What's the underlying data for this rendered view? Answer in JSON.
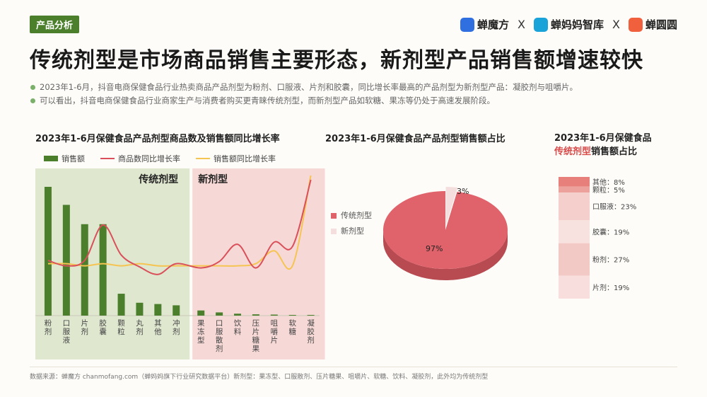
{
  "header": {
    "tag": "产品分析",
    "logos": [
      {
        "name": "蝉魔方",
        "color": "#2f6fe0"
      },
      {
        "name": "蝉妈妈智库",
        "color": "#1aa3d9"
      },
      {
        "name": "蝉圆圆",
        "color": "#f0603c"
      }
    ],
    "separator": "X"
  },
  "title": "传统剂型是市场商品销售主要形态，新剂型产品销售额增速较快",
  "bullets": [
    "2023年1-6月，抖音电商保健食品行业热卖商品产品剂型为粉剂、口服液、片剂和胶囊，同比增长率最高的产品剂型为新剂型产品：凝胶剂与咀嚼片。",
    "可以看出，抖音电商保健食品行业商家生产与消费者购买更青睐传统剂型，而新剂型产品如软糖、果冻等仍处于高速发展阶段。"
  ],
  "footer": "数据来源：蝉魔方 chanmofang.com（蝉妈妈旗下行业研究数据平台）新剂型：果冻型、口服散剂、压片糖果、咀嚼片、软糖、饮料、凝胶剂，此外均为传统剂型",
  "colors": {
    "green": "#4b7f2c",
    "red_line": "#d9505a",
    "yellow_line": "#f5c451",
    "traditional_bg": "#dfe7cf",
    "new_bg": "#f6d9d6",
    "pie_main": "#e0636b",
    "pie_new": "#f4dede"
  },
  "chart_data": [
    {
      "type": "bar",
      "title": "2023年1-6月保健食品产品剂型商品数及销售额同比增长率",
      "legend": [
        "销售额",
        "商品数同比增长率",
        "销售额同比增长率"
      ],
      "group_labels": [
        "传统剂型",
        "新剂型"
      ],
      "categories": [
        "粉剂",
        "口服液",
        "片剂",
        "胶囊",
        "颗粒",
        "丸剂",
        "其他",
        "冲剂",
        "果冻型",
        "口服散剂",
        "饮料",
        "压片糖果",
        "咀嚼片",
        "软糖",
        "凝胶剂"
      ],
      "group_split": 8,
      "series": [
        {
          "name": "销售额",
          "kind": "bar",
          "values": [
            100,
            86,
            71,
            71,
            17,
            10,
            9,
            8,
            4,
            2.5,
            1.5,
            1,
            0.8,
            0.5,
            0.3
          ]
        },
        {
          "name": "商品数同比增长率",
          "kind": "line",
          "values": [
            25,
            20,
            25,
            58,
            30,
            19,
            12,
            22,
            18,
            24,
            40,
            18,
            42,
            38,
            100
          ]
        },
        {
          "name": "销售额同比增长率",
          "kind": "line",
          "values": [
            22,
            22,
            20,
            22,
            20,
            22,
            20,
            20,
            20,
            20,
            20,
            22,
            34,
            20,
            104
          ]
        }
      ]
    },
    {
      "type": "pie",
      "title": "2023年1-6月保健食品产品剂型销售额占比",
      "slices": [
        {
          "name": "传统剂型",
          "value": 97,
          "label": "97%"
        },
        {
          "name": "新剂型",
          "value": 3,
          "label": "3%"
        }
      ]
    },
    {
      "type": "bar",
      "stacked": true,
      "title_line1": "2023年1-6月保健食品",
      "title_highlight": "传统剂型",
      "title_suffix": "销售额占比",
      "segments": [
        {
          "name": "其他",
          "value": 8,
          "label": "其他：8%",
          "color": "#e7807b"
        },
        {
          "name": "颗粒",
          "value": 5,
          "label": "颗粒：5%",
          "color": "#eda19c"
        },
        {
          "name": "口服液",
          "value": 23,
          "label": "口服液：23%",
          "color": "#f4cfcc"
        },
        {
          "name": "胶囊",
          "value": 19,
          "label": "胶囊：19%",
          "color": "#f8e2e0"
        },
        {
          "name": "粉剂",
          "value": 27,
          "label": "粉剂：27%",
          "color": "#f3c9c6"
        },
        {
          "name": "片剂",
          "value": 19,
          "label": "片剂：19%",
          "color": "#f8dfdd"
        }
      ]
    }
  ]
}
